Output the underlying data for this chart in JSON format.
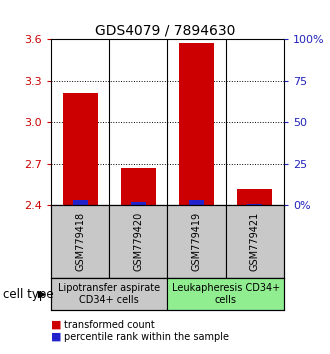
{
  "title": "GDS4079 / 7894630",
  "samples": [
    "GSM779418",
    "GSM779420",
    "GSM779419",
    "GSM779421"
  ],
  "transformed_counts": [
    3.21,
    2.67,
    3.57,
    2.52
  ],
  "percentile_ranks": [
    3,
    2,
    3,
    1
  ],
  "ylim": [
    2.4,
    3.6
  ],
  "y_ticks": [
    2.4,
    2.7,
    3.0,
    3.3,
    3.6
  ],
  "y_right_ticks": [
    0,
    25,
    50,
    75,
    100
  ],
  "bar_color_red": "#cc0000",
  "bar_color_blue": "#2222cc",
  "group_colors": [
    "#c8c8c8",
    "#90ee90"
  ],
  "group_labels": [
    "Lipotransfer aspirate\nCD34+ cells",
    "Leukapheresis CD34+\ncells"
  ],
  "group_sample_counts": [
    2,
    2
  ],
  "baseline": 2.4,
  "title_fontsize": 10,
  "tick_fontsize": 8,
  "sample_fontsize": 7,
  "group_fontsize": 7
}
